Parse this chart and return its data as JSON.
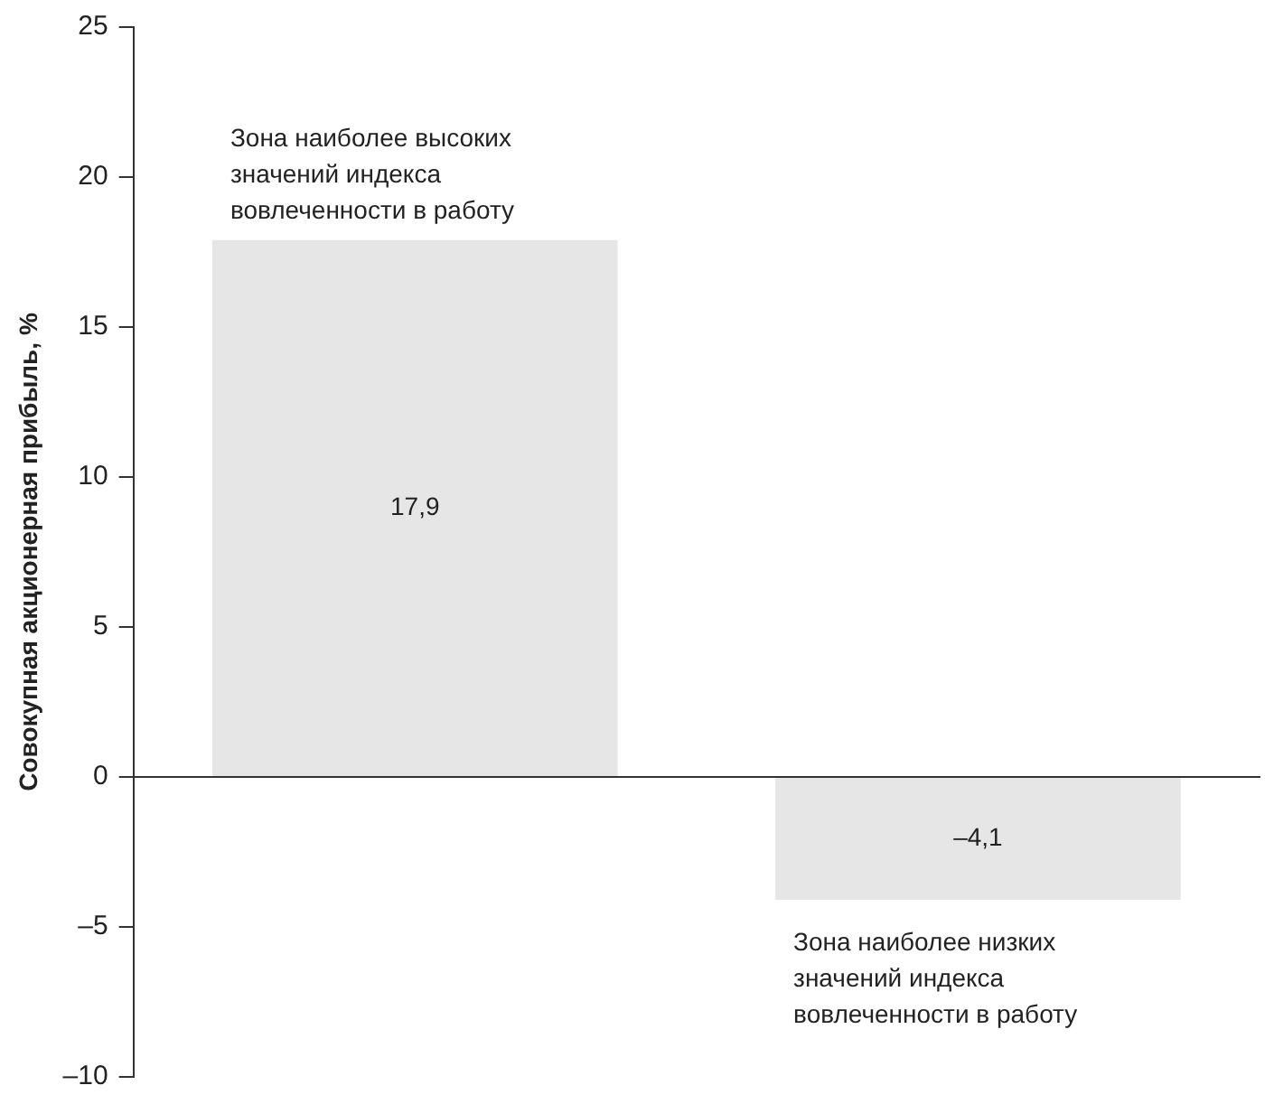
{
  "chart_data": {
    "type": "bar",
    "ylabel": "Совокупная акционерная прибыль, %",
    "categories": [
      null,
      null
    ],
    "values": [
      17.9,
      -4.1
    ],
    "value_labels": [
      "17,9",
      "–4,1"
    ],
    "color": "#e6e6e6",
    "ylim": [
      -10,
      25
    ],
    "yticks": [
      {
        "value": -10,
        "label": "–10"
      },
      {
        "value": -5,
        "label": "–5"
      },
      0,
      5,
      10,
      15,
      20,
      25
    ],
    "annotations": [
      "Зона наиболее высоких\nзначений индекса\nвовлеченности в работу",
      "Зона наиболее низких\nзначений индекса\nвовлеченности в работу"
    ]
  }
}
